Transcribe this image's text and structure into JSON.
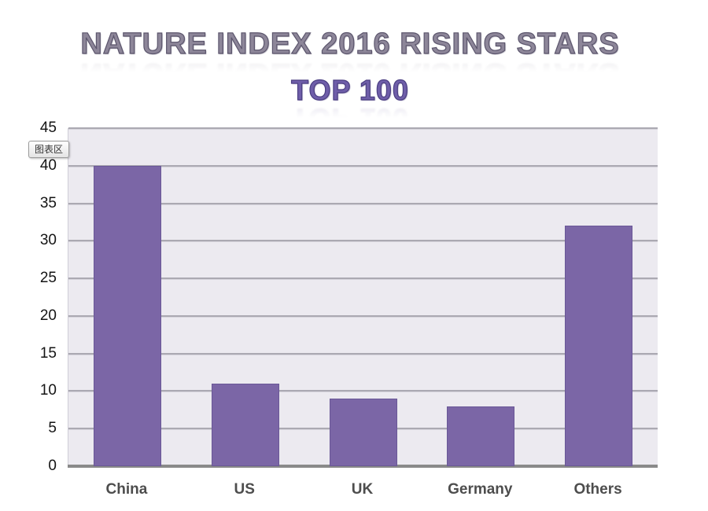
{
  "title": {
    "line1": "NATURE INDEX 2016 RISING STARS",
    "line2": "TOP 100"
  },
  "tooltip": {
    "text": "图表区"
  },
  "colors": {
    "bar": "#7b66a6",
    "bar_border": "#6a5897",
    "plot_background": "#eceaf0",
    "gridline": "#aba9b2",
    "baseline": "#8a8a8a",
    "title_line1": "#8d8699",
    "title_line2": "#6f5ea9",
    "axis_label": "#141414",
    "category_label": "#4d4d4d"
  },
  "chart_data": {
    "type": "bar",
    "title": "NATURE INDEX 2016 RISING STARS",
    "subtitle": "TOP 100",
    "categories": [
      "China",
      "US",
      "UK",
      "Germany",
      "Others"
    ],
    "values": [
      40,
      11,
      9,
      8,
      32
    ],
    "xlabel": "",
    "ylabel": "",
    "ylim": [
      0,
      45
    ],
    "ytick_step": 5,
    "yticks": [
      45,
      40,
      35,
      30,
      25,
      20,
      15,
      10,
      5,
      0
    ],
    "grid": true,
    "legend": false,
    "bar_color": "#7b66a6"
  }
}
